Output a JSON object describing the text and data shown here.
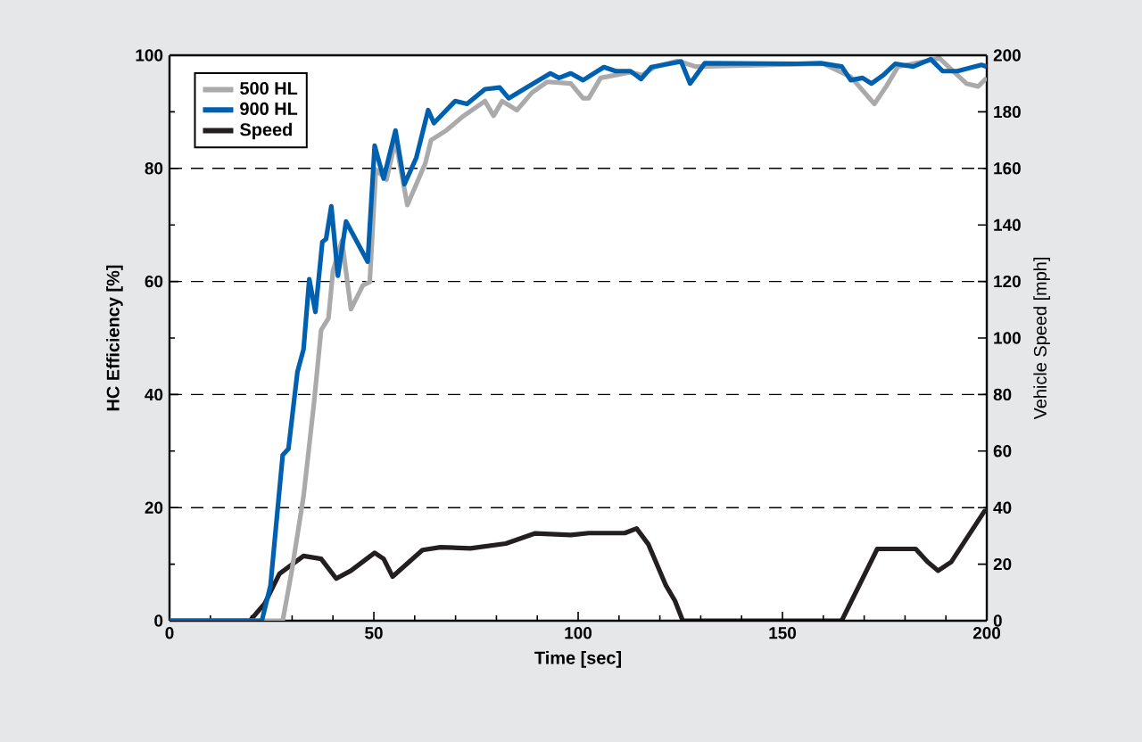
{
  "chart_data": {
    "type": "line",
    "xlabel": "Time [sec]",
    "ylabel": "HC Efficiency [%]",
    "y2label": "Vehicle Speed [mph]",
    "xlim": [
      0,
      200
    ],
    "xticks": [
      0,
      50,
      100,
      150,
      200
    ],
    "ylim": [
      0,
      100
    ],
    "yticks": [
      0,
      20,
      40,
      60,
      80,
      100
    ],
    "y2lim": [
      0,
      200
    ],
    "y2ticks": [
      0,
      20,
      40,
      60,
      80,
      100,
      120,
      140,
      160,
      180,
      200
    ],
    "grid": "y",
    "legend": "top left",
    "series": [
      {
        "name": "500 HL",
        "color": "#aaaaaa",
        "x": [
          0,
          27.7,
          29.8,
          32.8,
          35.4,
          37.1,
          38.9,
          40,
          42.2,
          44.4,
          47.3,
          49,
          50.5,
          53.1,
          55.3,
          58.2,
          62.6,
          64,
          67.7,
          72,
          77.2,
          79.3,
          81.4,
          85,
          88.7,
          92.4,
          98.2,
          101.2,
          102.6,
          105.5,
          112.8,
          115.7,
          118.6,
          124.4,
          128.8,
          160,
          166.7,
          172.5,
          175.4,
          178.3,
          185.5,
          188.4,
          195,
          197.9,
          200
        ],
        "values": [
          0,
          0,
          8.3,
          22,
          38.8,
          51.4,
          53.5,
          61.9,
          67.2,
          55.1,
          59.3,
          59.9,
          79.8,
          78,
          85,
          73.5,
          80.9,
          85,
          86.7,
          89.3,
          91.9,
          89.3,
          91.9,
          90.3,
          93.4,
          95.3,
          95,
          92.4,
          92.4,
          96,
          97,
          96.5,
          97.9,
          99,
          98,
          98.5,
          96.2,
          91.4,
          94.5,
          98,
          99,
          99.5,
          95,
          94.5,
          96
        ]
      },
      {
        "name": "900 HL",
        "color": "#0060b0",
        "x": [
          0,
          22.6,
          24.7,
          27.7,
          29.1,
          31.3,
          32.8,
          34.2,
          35.7,
          37.4,
          38.3,
          39.6,
          41.2,
          43.2,
          48.5,
          50.2,
          52.4,
          55.3,
          57.5,
          60.4,
          63.3,
          64.7,
          69.9,
          72.8,
          77.2,
          80.8,
          83,
          86.7,
          93.2,
          95.3,
          98.2,
          101.2,
          106.3,
          109.2,
          112.8,
          115.4,
          117.9,
          125.2,
          127.4,
          131,
          153.6,
          159.4,
          164.5,
          166.7,
          169.6,
          171.8,
          174.7,
          177.6,
          182,
          186.3,
          189.2,
          192.8,
          198.7,
          200
        ],
        "values": [
          0,
          0,
          6.2,
          29.3,
          30.4,
          44,
          48,
          60.4,
          54.6,
          67,
          67.5,
          73.3,
          61,
          70.6,
          63.5,
          84,
          78.2,
          86.7,
          77.2,
          81.9,
          90.3,
          88,
          91.9,
          91.4,
          94,
          94.3,
          92.4,
          94,
          96.8,
          96,
          96.8,
          95.6,
          97.9,
          97.2,
          97.2,
          95.8,
          97.9,
          98.9,
          95,
          98.6,
          98.5,
          98.6,
          98,
          95.6,
          96,
          95,
          96.5,
          98.5,
          98,
          99.3,
          97.2,
          97.2,
          98.3,
          98
        ]
      },
      {
        "name": "Speed",
        "color": "#231f20",
        "axis": "y2",
        "x": [
          0,
          19.7,
          23.3,
          26.9,
          32.8,
          37.1,
          40.8,
          44.4,
          50.2,
          52.4,
          54.6,
          61.9,
          66.3,
          73.6,
          82.3,
          89.5,
          98.2,
          102.6,
          111.4,
          114.3,
          117.2,
          121.5,
          123.7,
          125.6,
          164.5,
          173.2,
          182.6,
          185.5,
          188.1,
          191.3,
          199.4,
          200
        ],
        "values": [
          0,
          0,
          6.1,
          16.6,
          22.9,
          21.9,
          14.9,
          17.7,
          24,
          21.9,
          15.6,
          25,
          26,
          25.6,
          27.3,
          30.9,
          30.3,
          31,
          31,
          32.6,
          27,
          12.4,
          7,
          0,
          0,
          25.4,
          25.4,
          20.8,
          17.7,
          20.8,
          38.7,
          39
        ]
      }
    ]
  }
}
